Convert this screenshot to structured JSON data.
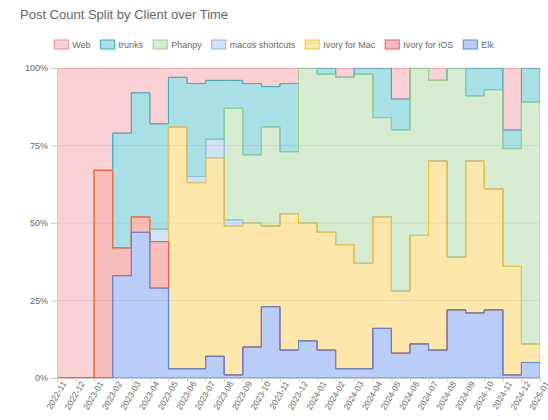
{
  "chart_data": {
    "type": "area",
    "title": "Post Count Split by Client over Time",
    "categories": [
      "2022-11",
      "2022-12",
      "2023-01",
      "2023-02",
      "2023-03",
      "2023-04",
      "2023-05",
      "2023-06",
      "2023-07",
      "2023-08",
      "2023-09",
      "2023-10",
      "2023-11",
      "2023-12",
      "2024-01",
      "2024-02",
      "2024-03",
      "2024-04",
      "2024-05",
      "2024-06",
      "2024-07",
      "2024-08",
      "2024-09",
      "2024-10",
      "2024-11",
      "2024-12",
      "2025-01"
    ],
    "series": [
      {
        "name": "Web",
        "color": "#f28b94",
        "values": [
          100,
          100,
          100,
          33,
          21,
          8,
          18,
          3,
          5,
          4,
          4,
          5,
          6,
          5,
          0,
          0,
          3,
          0,
          0,
          10,
          0,
          4,
          0,
          0,
          0,
          20,
          0
        ]
      },
      {
        "name": "trunks",
        "color": "#2bb5c4",
        "values": [
          0,
          0,
          0,
          0,
          37,
          40,
          34,
          16,
          30,
          19,
          9,
          23,
          13,
          22,
          0,
          2,
          0,
          2,
          16,
          10,
          0,
          0,
          0,
          9,
          7,
          6,
          11
        ]
      },
      {
        "name": "Phanpy",
        "color": "#9ccf8a",
        "values": [
          0,
          0,
          0,
          0,
          0,
          0,
          0,
          0,
          0,
          0,
          36,
          22,
          32,
          20,
          50,
          51,
          54,
          61,
          32,
          52,
          54,
          26,
          61,
          21,
          32,
          38,
          78
        ]
      },
      {
        "name": "macos shortcuts",
        "color": "#8fb8ec",
        "values": [
          0,
          0,
          0,
          0,
          0,
          0,
          4,
          0,
          2,
          6,
          2,
          0,
          0,
          0,
          0,
          0,
          0,
          0,
          0,
          0,
          0,
          0,
          0,
          0,
          0,
          0,
          0
        ]
      },
      {
        "name": "Ivory for Mac",
        "color": "#f9c22e",
        "values": [
          0,
          0,
          0,
          0,
          0,
          0,
          0,
          78,
          60,
          64,
          48,
          40,
          26,
          44,
          38,
          38,
          40,
          34,
          36,
          20,
          35,
          61,
          17,
          49,
          39,
          35,
          6
        ]
      },
      {
        "name": "Ivory for iOS",
        "color": "#ef5a50",
        "values": [
          0,
          0,
          0,
          67,
          9,
          5,
          15,
          0,
          0,
          0,
          0,
          0,
          0,
          0,
          0,
          0,
          0,
          0,
          0,
          0,
          0,
          0,
          0,
          0,
          0,
          0,
          0
        ]
      },
      {
        "name": "Elk",
        "color": "#4f86f0",
        "values": [
          0,
          0,
          0,
          0,
          33,
          47,
          29,
          3,
          3,
          7,
          1,
          10,
          23,
          9,
          12,
          9,
          3,
          3,
          16,
          8,
          11,
          9,
          22,
          21,
          22,
          1,
          5
        ]
      }
    ],
    "stacked": true,
    "ylim": [
      0,
      100
    ],
    "yticks": [
      {
        "value": 0,
        "label": "0%"
      },
      {
        "value": 25,
        "label": "25%"
      },
      {
        "value": 50,
        "label": "50%"
      },
      {
        "value": 75,
        "label": "75%"
      },
      {
        "value": 100,
        "label": "100%"
      }
    ],
    "grid": true,
    "legend": "top"
  }
}
